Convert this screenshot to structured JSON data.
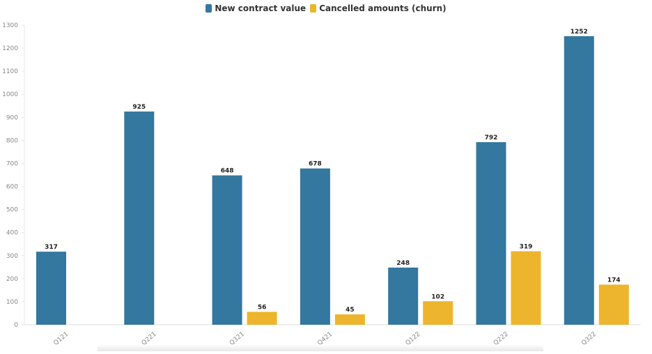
{
  "chart_data": {
    "type": "bar",
    "title": "",
    "xlabel": "",
    "ylabel": "",
    "categories": [
      "Q121",
      "Q221",
      "Q321",
      "Q421",
      "Q122",
      "Q222",
      "Q322"
    ],
    "series": [
      {
        "name": "New contract value",
        "color": "#34779f",
        "values": [
          317,
          925,
          648,
          678,
          248,
          792,
          1252
        ]
      },
      {
        "name": "Cancelled amounts (churn)",
        "color": "#edb52e",
        "values": [
          null,
          null,
          56,
          45,
          102,
          319,
          174
        ]
      }
    ],
    "ylim": [
      0,
      1300
    ],
    "yticks": [
      0,
      100,
      200,
      300,
      400,
      500,
      600,
      700,
      800,
      900,
      1000,
      1100,
      1200,
      1300
    ],
    "grid": false,
    "legend_position": "top-center",
    "data_labels": true
  }
}
